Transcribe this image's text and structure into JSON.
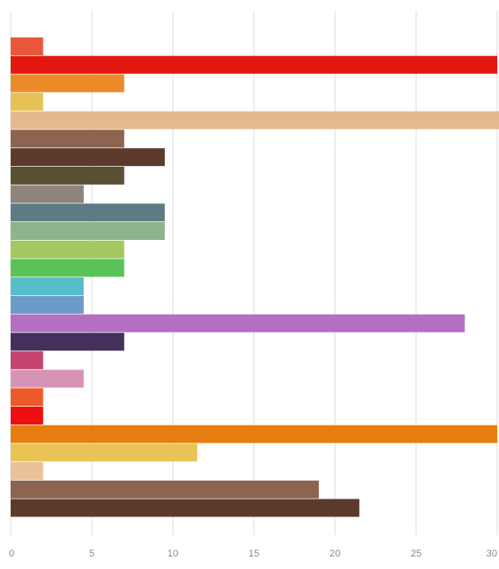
{
  "chart_data": {
    "type": "bar",
    "orientation": "horizontal",
    "title": "",
    "xlabel": "",
    "ylabel": "",
    "xlim": [
      0,
      30
    ],
    "x_ticks": [
      "0",
      "5",
      "10",
      "15",
      "20",
      "25",
      "30"
    ],
    "grid": "vertical",
    "legend": "none",
    "values": [
      2,
      30,
      7,
      2,
      31,
      7,
      9.5,
      7,
      4.5,
      9.5,
      9.5,
      7,
      7,
      4.5,
      4.5,
      28,
      7,
      2,
      4.5,
      2,
      2,
      30,
      11.5,
      2,
      19,
      21.5
    ],
    "colors": [
      "#e8573a",
      "#e3180f",
      "#ec8a2a",
      "#e5c253",
      "#e5b98f",
      "#8c6450",
      "#5c3a2c",
      "#5b4f34",
      "#8e8479",
      "#5e7a84",
      "#8fb48d",
      "#a3c95e",
      "#59c359",
      "#57bcc9",
      "#6a9bc9",
      "#b46ec2",
      "#43305c",
      "#c4446d",
      "#d793b5",
      "#ef5a2a",
      "#ee1010",
      "#e67e0f",
      "#e9c354",
      "#e9c29a",
      "#8c6450",
      "#5c3a2c"
    ]
  }
}
